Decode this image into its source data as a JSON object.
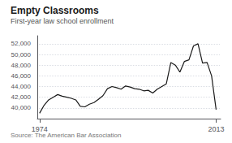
{
  "chart_data": {
    "type": "line",
    "title": "Empty Classrooms",
    "subtitle": "First-year law school enrollment",
    "annotations": [
      "Source: The American Bar Association"
    ],
    "x": [
      1974,
      1975,
      1976,
      1977,
      1978,
      1979,
      1980,
      1981,
      1982,
      1983,
      1984,
      1985,
      1986,
      1987,
      1988,
      1989,
      1990,
      1991,
      1992,
      1993,
      1994,
      1995,
      1996,
      1997,
      1998,
      1999,
      2000,
      2001,
      2002,
      2003,
      2004,
      2005,
      2006,
      2007,
      2008,
      2009,
      2010,
      2011,
      2012,
      2013
    ],
    "values": [
      39000,
      40500,
      41500,
      42000,
      42500,
      42200,
      42000,
      41800,
      41500,
      40300,
      40200,
      40700,
      41000,
      41600,
      42300,
      43600,
      44000,
      43800,
      43500,
      44100,
      43900,
      43600,
      43500,
      43200,
      43300,
      42800,
      43500,
      44000,
      44500,
      48500,
      48000,
      46700,
      48700,
      49000,
      51600,
      52000,
      48400,
      48500,
      46000,
      39700
    ],
    "color": "#1a1a1a",
    "xlim": [
      1973.5,
      2014
    ],
    "xticks": [
      1974,
      2013
    ],
    "ylim": [
      38000,
      53500
    ],
    "yticks": [
      {
        "value": 40000,
        "label": "40,000"
      },
      {
        "value": 42000,
        "label": "42,000"
      },
      {
        "value": 44000,
        "label": "44,000"
      },
      {
        "value": 46000,
        "label": "46,000"
      },
      {
        "value": 48000,
        "label": "48,000"
      },
      {
        "value": 50000,
        "label": "50,000"
      },
      {
        "value": 52000,
        "label": "52,000"
      }
    ],
    "grid": true
  }
}
